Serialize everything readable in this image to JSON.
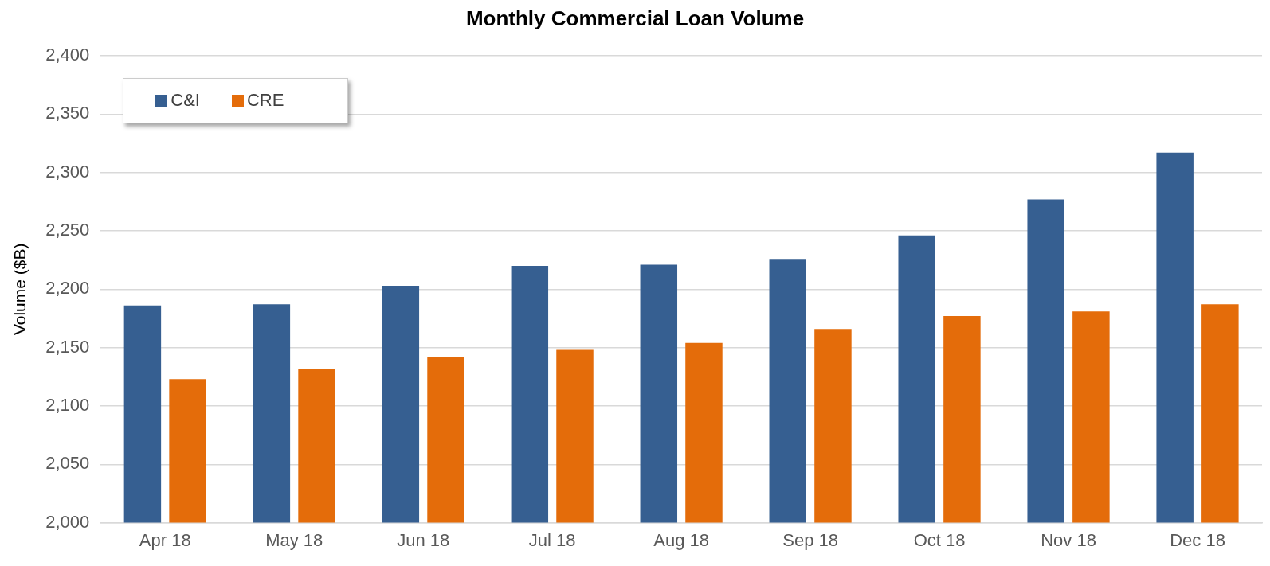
{
  "chart_data": {
    "type": "bar",
    "title": "Monthly Commercial Loan Volume",
    "ylabel": "Volume ($B)",
    "categories": [
      "Apr 18",
      "May 18",
      "Jun 18",
      "Jul 18",
      "Aug 18",
      "Sep 18",
      "Oct 18",
      "Nov 18",
      "Dec 18"
    ],
    "series": [
      {
        "name": "C&I",
        "color": "#365f91",
        "values": [
          2186,
          2187,
          2203,
          2220,
          2221,
          2226,
          2246,
          2277,
          2317
        ]
      },
      {
        "name": "CRE",
        "color": "#e46c0a",
        "values": [
          2123,
          2132,
          2142,
          2148,
          2154,
          2166,
          2177,
          2181,
          2187
        ]
      }
    ],
    "ylim": [
      2000,
      2400
    ],
    "yticks": [
      {
        "value": 2000,
        "label": "2,000"
      },
      {
        "value": 2050,
        "label": "2,050"
      },
      {
        "value": 2100,
        "label": "2,100"
      },
      {
        "value": 2150,
        "label": "2,150"
      },
      {
        "value": 2200,
        "label": "2,200"
      },
      {
        "value": 2250,
        "label": "2,250"
      },
      {
        "value": 2300,
        "label": "2,300"
      },
      {
        "value": 2350,
        "label": "2,350"
      },
      {
        "value": 2400,
        "label": "2,400"
      }
    ],
    "grid": "y",
    "legend": "top left"
  }
}
